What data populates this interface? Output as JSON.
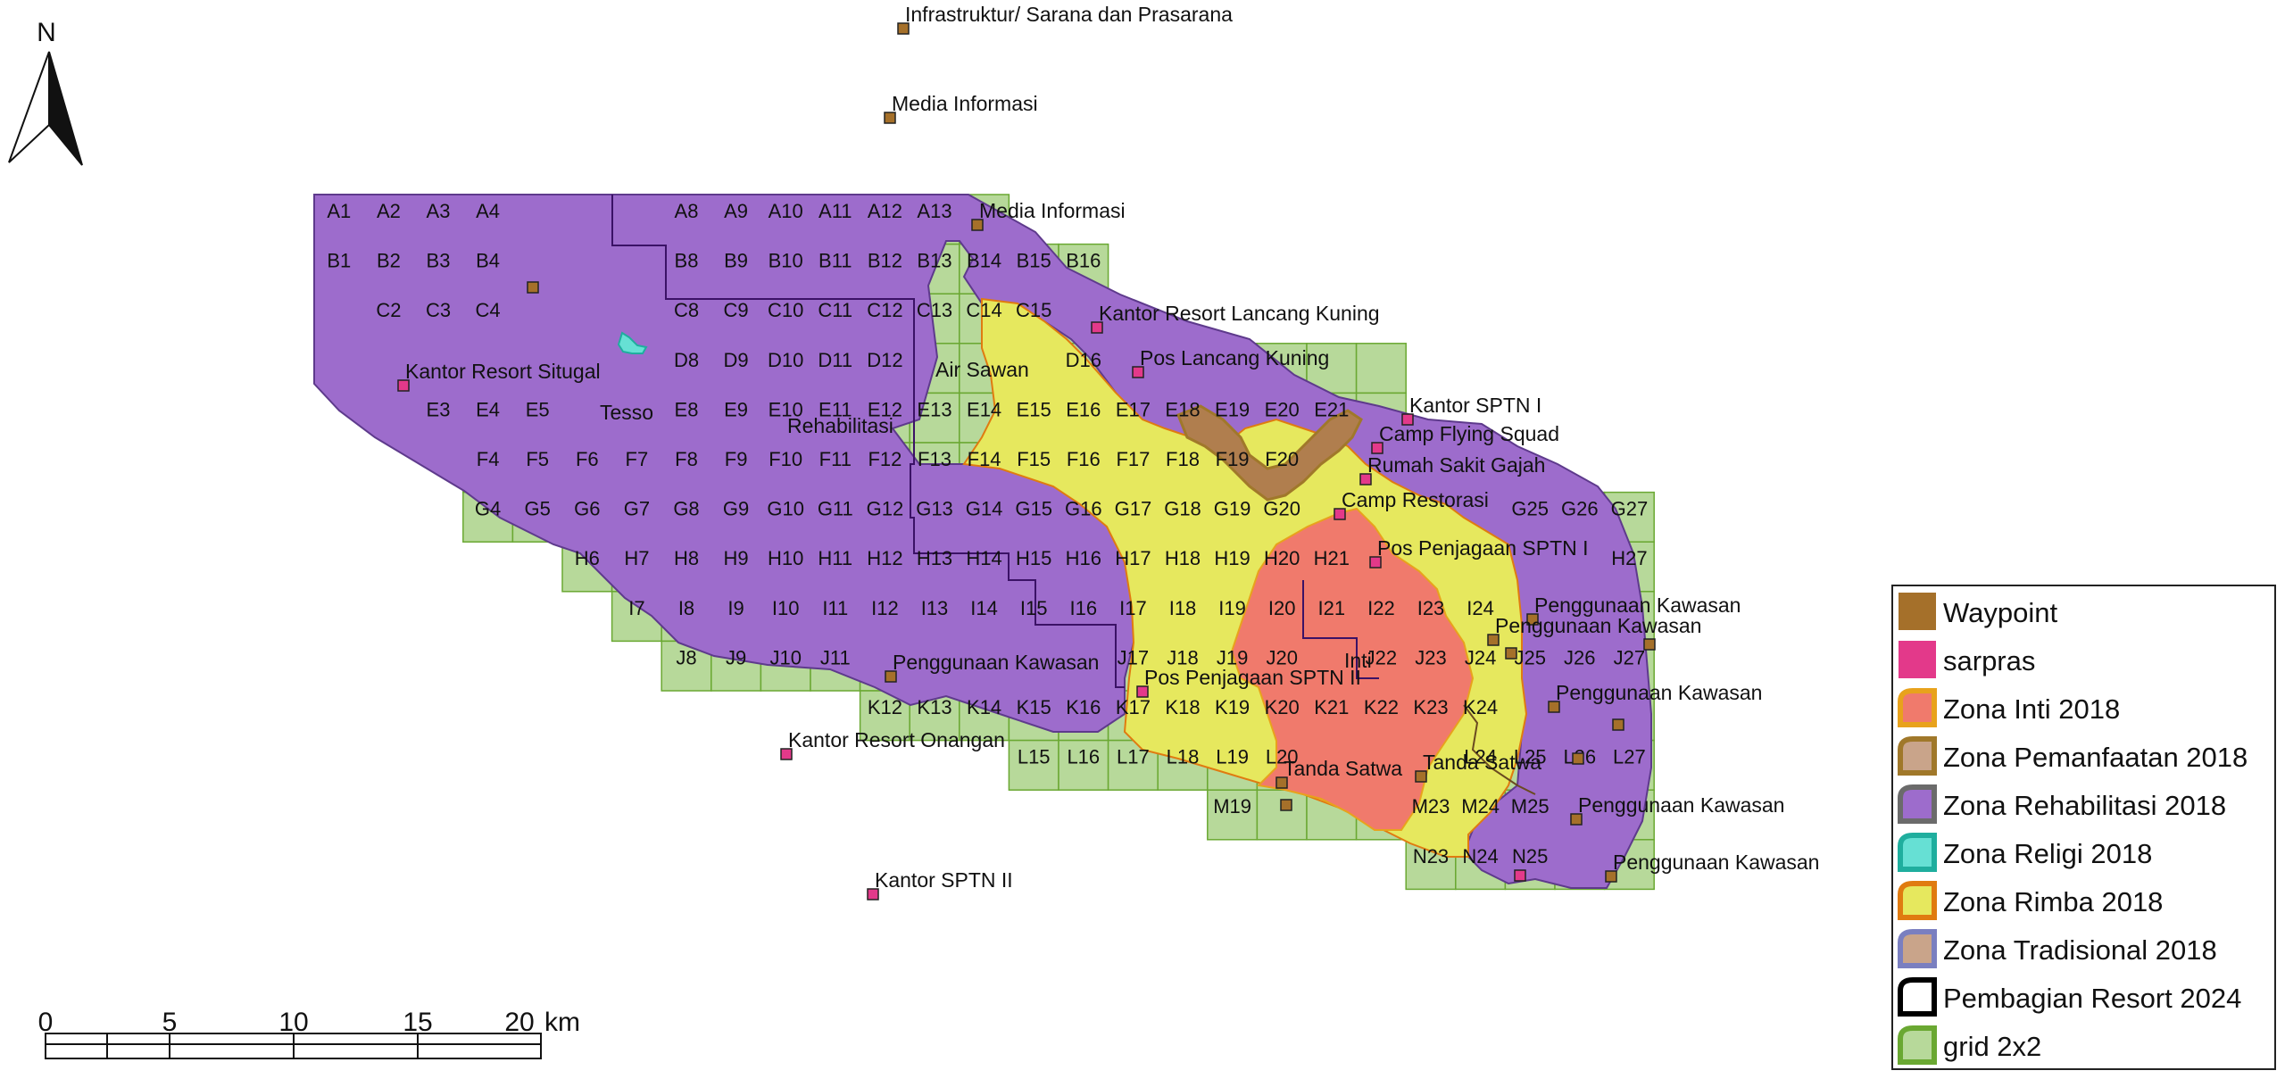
{
  "north": {
    "label": "N"
  },
  "scalebar": {
    "ticks": [
      "0",
      "5",
      "10",
      "15",
      "20"
    ],
    "unit": "km"
  },
  "grid_cells": [
    {
      "id": "A1",
      "c": 0,
      "r": 0
    },
    {
      "id": "A2",
      "c": 1,
      "r": 0
    },
    {
      "id": "A3",
      "c": 2,
      "r": 0
    },
    {
      "id": "A4",
      "c": 3,
      "r": 0
    },
    {
      "id": "A8",
      "c": 7,
      "r": 0
    },
    {
      "id": "A9",
      "c": 8,
      "r": 0
    },
    {
      "id": "A10",
      "c": 9,
      "r": 0
    },
    {
      "id": "A11",
      "c": 10,
      "r": 0
    },
    {
      "id": "A12",
      "c": 11,
      "r": 0
    },
    {
      "id": "A13",
      "c": 12,
      "r": 0
    },
    {
      "id": "B1",
      "c": 0,
      "r": 1
    },
    {
      "id": "B2",
      "c": 1,
      "r": 1
    },
    {
      "id": "B3",
      "c": 2,
      "r": 1
    },
    {
      "id": "B4",
      "c": 3,
      "r": 1
    },
    {
      "id": "B8",
      "c": 7,
      "r": 1
    },
    {
      "id": "B9",
      "c": 8,
      "r": 1
    },
    {
      "id": "B10",
      "c": 9,
      "r": 1
    },
    {
      "id": "B11",
      "c": 10,
      "r": 1
    },
    {
      "id": "B12",
      "c": 11,
      "r": 1
    },
    {
      "id": "B13",
      "c": 12,
      "r": 1
    },
    {
      "id": "B14",
      "c": 13,
      "r": 1
    },
    {
      "id": "B15",
      "c": 14,
      "r": 1
    },
    {
      "id": "B16",
      "c": 15,
      "r": 1
    },
    {
      "id": "C2",
      "c": 1,
      "r": 2
    },
    {
      "id": "C3",
      "c": 2,
      "r": 2
    },
    {
      "id": "C4",
      "c": 3,
      "r": 2
    },
    {
      "id": "C8",
      "c": 7,
      "r": 2
    },
    {
      "id": "C9",
      "c": 8,
      "r": 2
    },
    {
      "id": "C10",
      "c": 9,
      "r": 2
    },
    {
      "id": "C11",
      "c": 10,
      "r": 2
    },
    {
      "id": "C12",
      "c": 11,
      "r": 2
    },
    {
      "id": "C13",
      "c": 12,
      "r": 2
    },
    {
      "id": "C14",
      "c": 13,
      "r": 2
    },
    {
      "id": "C15",
      "c": 14,
      "r": 2
    },
    {
      "id": "D8",
      "c": 7,
      "r": 3
    },
    {
      "id": "D9",
      "c": 8,
      "r": 3
    },
    {
      "id": "D10",
      "c": 9,
      "r": 3
    },
    {
      "id": "D11",
      "c": 10,
      "r": 3
    },
    {
      "id": "D12",
      "c": 11,
      "r": 3
    },
    {
      "id": "D16",
      "c": 15,
      "r": 3
    },
    {
      "id": "E3",
      "c": 2,
      "r": 4
    },
    {
      "id": "E4",
      "c": 3,
      "r": 4
    },
    {
      "id": "E5",
      "c": 4,
      "r": 4
    },
    {
      "id": "E8",
      "c": 7,
      "r": 4
    },
    {
      "id": "E9",
      "c": 8,
      "r": 4
    },
    {
      "id": "E10",
      "c": 9,
      "r": 4
    },
    {
      "id": "E11",
      "c": 10,
      "r": 4
    },
    {
      "id": "E12",
      "c": 11,
      "r": 4
    },
    {
      "id": "E13",
      "c": 12,
      "r": 4
    },
    {
      "id": "E14",
      "c": 13,
      "r": 4
    },
    {
      "id": "E15",
      "c": 14,
      "r": 4
    },
    {
      "id": "E16",
      "c": 15,
      "r": 4
    },
    {
      "id": "E17",
      "c": 16,
      "r": 4
    },
    {
      "id": "E18",
      "c": 17,
      "r": 4
    },
    {
      "id": "E19",
      "c": 18,
      "r": 4
    },
    {
      "id": "E20",
      "c": 19,
      "r": 4
    },
    {
      "id": "E21",
      "c": 20,
      "r": 4
    },
    {
      "id": "F4",
      "c": 3,
      "r": 5
    },
    {
      "id": "F5",
      "c": 4,
      "r": 5
    },
    {
      "id": "F6",
      "c": 5,
      "r": 5
    },
    {
      "id": "F7",
      "c": 6,
      "r": 5
    },
    {
      "id": "F8",
      "c": 7,
      "r": 5
    },
    {
      "id": "F9",
      "c": 8,
      "r": 5
    },
    {
      "id": "F10",
      "c": 9,
      "r": 5
    },
    {
      "id": "F11",
      "c": 10,
      "r": 5
    },
    {
      "id": "F12",
      "c": 11,
      "r": 5
    },
    {
      "id": "F13",
      "c": 12,
      "r": 5
    },
    {
      "id": "F14",
      "c": 13,
      "r": 5
    },
    {
      "id": "F15",
      "c": 14,
      "r": 5
    },
    {
      "id": "F16",
      "c": 15,
      "r": 5
    },
    {
      "id": "F17",
      "c": 16,
      "r": 5
    },
    {
      "id": "F18",
      "c": 17,
      "r": 5
    },
    {
      "id": "F19",
      "c": 18,
      "r": 5
    },
    {
      "id": "F20",
      "c": 19,
      "r": 5
    },
    {
      "id": "G4",
      "c": 3,
      "r": 6
    },
    {
      "id": "G5",
      "c": 4,
      "r": 6
    },
    {
      "id": "G6",
      "c": 5,
      "r": 6
    },
    {
      "id": "G7",
      "c": 6,
      "r": 6
    },
    {
      "id": "G8",
      "c": 7,
      "r": 6
    },
    {
      "id": "G9",
      "c": 8,
      "r": 6
    },
    {
      "id": "G10",
      "c": 9,
      "r": 6
    },
    {
      "id": "G11",
      "c": 10,
      "r": 6
    },
    {
      "id": "G12",
      "c": 11,
      "r": 6
    },
    {
      "id": "G13",
      "c": 12,
      "r": 6
    },
    {
      "id": "G14",
      "c": 13,
      "r": 6
    },
    {
      "id": "G15",
      "c": 14,
      "r": 6
    },
    {
      "id": "G16",
      "c": 15,
      "r": 6
    },
    {
      "id": "G17",
      "c": 16,
      "r": 6
    },
    {
      "id": "G18",
      "c": 17,
      "r": 6
    },
    {
      "id": "G19",
      "c": 18,
      "r": 6
    },
    {
      "id": "G20",
      "c": 19,
      "r": 6
    },
    {
      "id": "G25",
      "c": 24,
      "r": 6
    },
    {
      "id": "G26",
      "c": 25,
      "r": 6
    },
    {
      "id": "G27",
      "c": 26,
      "r": 6
    },
    {
      "id": "H6",
      "c": 5,
      "r": 7
    },
    {
      "id": "H7",
      "c": 6,
      "r": 7
    },
    {
      "id": "H8",
      "c": 7,
      "r": 7
    },
    {
      "id": "H9",
      "c": 8,
      "r": 7
    },
    {
      "id": "H10",
      "c": 9,
      "r": 7
    },
    {
      "id": "H11",
      "c": 10,
      "r": 7
    },
    {
      "id": "H12",
      "c": 11,
      "r": 7
    },
    {
      "id": "H13",
      "c": 12,
      "r": 7
    },
    {
      "id": "H14",
      "c": 13,
      "r": 7
    },
    {
      "id": "H15",
      "c": 14,
      "r": 7
    },
    {
      "id": "H16",
      "c": 15,
      "r": 7
    },
    {
      "id": "H17",
      "c": 16,
      "r": 7
    },
    {
      "id": "H18",
      "c": 17,
      "r": 7
    },
    {
      "id": "H19",
      "c": 18,
      "r": 7
    },
    {
      "id": "H20",
      "c": 19,
      "r": 7
    },
    {
      "id": "H21",
      "c": 20,
      "r": 7
    },
    {
      "id": "H27",
      "c": 26,
      "r": 7
    },
    {
      "id": "I7",
      "c": 6,
      "r": 8
    },
    {
      "id": "I8",
      "c": 7,
      "r": 8
    },
    {
      "id": "I9",
      "c": 8,
      "r": 8
    },
    {
      "id": "I10",
      "c": 9,
      "r": 8
    },
    {
      "id": "I11",
      "c": 10,
      "r": 8
    },
    {
      "id": "I12",
      "c": 11,
      "r": 8
    },
    {
      "id": "I13",
      "c": 12,
      "r": 8
    },
    {
      "id": "I14",
      "c": 13,
      "r": 8
    },
    {
      "id": "I15",
      "c": 14,
      "r": 8
    },
    {
      "id": "I16",
      "c": 15,
      "r": 8
    },
    {
      "id": "I17",
      "c": 16,
      "r": 8
    },
    {
      "id": "I18",
      "c": 17,
      "r": 8
    },
    {
      "id": "I19",
      "c": 18,
      "r": 8
    },
    {
      "id": "I20",
      "c": 19,
      "r": 8
    },
    {
      "id": "I21",
      "c": 20,
      "r": 8
    },
    {
      "id": "I22",
      "c": 21,
      "r": 8
    },
    {
      "id": "I23",
      "c": 22,
      "r": 8
    },
    {
      "id": "I24",
      "c": 23,
      "r": 8
    },
    {
      "id": "J8",
      "c": 7,
      "r": 9
    },
    {
      "id": "J9",
      "c": 8,
      "r": 9
    },
    {
      "id": "J10",
      "c": 9,
      "r": 9
    },
    {
      "id": "J11",
      "c": 10,
      "r": 9
    },
    {
      "id": "J17",
      "c": 16,
      "r": 9
    },
    {
      "id": "J18",
      "c": 17,
      "r": 9
    },
    {
      "id": "J19",
      "c": 18,
      "r": 9
    },
    {
      "id": "J20",
      "c": 19,
      "r": 9
    },
    {
      "id": "J22",
      "c": 21,
      "r": 9
    },
    {
      "id": "J23",
      "c": 22,
      "r": 9
    },
    {
      "id": "J24",
      "c": 23,
      "r": 9
    },
    {
      "id": "J25",
      "c": 24,
      "r": 9
    },
    {
      "id": "J26",
      "c": 25,
      "r": 9
    },
    {
      "id": "J27",
      "c": 26,
      "r": 9
    },
    {
      "id": "K12",
      "c": 11,
      "r": 10
    },
    {
      "id": "K13",
      "c": 12,
      "r": 10
    },
    {
      "id": "K14",
      "c": 13,
      "r": 10
    },
    {
      "id": "K15",
      "c": 14,
      "r": 10
    },
    {
      "id": "K16",
      "c": 15,
      "r": 10
    },
    {
      "id": "K17",
      "c": 16,
      "r": 10
    },
    {
      "id": "K18",
      "c": 17,
      "r": 10
    },
    {
      "id": "K19",
      "c": 18,
      "r": 10
    },
    {
      "id": "K20",
      "c": 19,
      "r": 10
    },
    {
      "id": "K21",
      "c": 20,
      "r": 10
    },
    {
      "id": "K22",
      "c": 21,
      "r": 10
    },
    {
      "id": "K23",
      "c": 22,
      "r": 10
    },
    {
      "id": "K24",
      "c": 23,
      "r": 10
    },
    {
      "id": "L15",
      "c": 14,
      "r": 11
    },
    {
      "id": "L16",
      "c": 15,
      "r": 11
    },
    {
      "id": "L17",
      "c": 16,
      "r": 11
    },
    {
      "id": "L18",
      "c": 17,
      "r": 11
    },
    {
      "id": "L19",
      "c": 18,
      "r": 11
    },
    {
      "id": "L20",
      "c": 19,
      "r": 11
    },
    {
      "id": "L24",
      "c": 23,
      "r": 11
    },
    {
      "id": "L25",
      "c": 24,
      "r": 11
    },
    {
      "id": "L26",
      "c": 25,
      "r": 11
    },
    {
      "id": "L27",
      "c": 26,
      "r": 11
    },
    {
      "id": "M19",
      "c": 18,
      "r": 12
    },
    {
      "id": "M23",
      "c": 22,
      "r": 12
    },
    {
      "id": "M24",
      "c": 23,
      "r": 12
    },
    {
      "id": "M25",
      "c": 24,
      "r": 12
    },
    {
      "id": "N23",
      "c": 22,
      "r": 13
    },
    {
      "id": "N24",
      "c": 23,
      "r": 13
    },
    {
      "id": "N25",
      "c": 24,
      "r": 13
    }
  ],
  "place_labels": [
    {
      "name": "Tesso",
      "text": "Tesso"
    },
    {
      "name": "Rehabilitasi",
      "text": "Rehabilitasi"
    },
    {
      "name": "Air Sawan",
      "text": "Air Sawan"
    },
    {
      "name": "Inti",
      "text": "Inti"
    }
  ],
  "points": [
    {
      "type": "waypoint",
      "label": "Infrastruktur/ Sarana dan Prasarana"
    },
    {
      "type": "waypoint",
      "label": "Media Informasi"
    },
    {
      "type": "waypoint",
      "label": "Media Informasi"
    },
    {
      "type": "waypoint",
      "label": ""
    },
    {
      "type": "sarpras",
      "label": "Kantor Resort Lancang Kuning"
    },
    {
      "type": "sarpras",
      "label": "Pos Lancang Kuning"
    },
    {
      "type": "sarpras",
      "label": "Kantor Resort Situgal"
    },
    {
      "type": "sarpras",
      "label": "Kantor SPTN I"
    },
    {
      "type": "sarpras",
      "label": "Camp Flying Squad"
    },
    {
      "type": "sarpras",
      "label": "Rumah Sakit Gajah"
    },
    {
      "type": "sarpras",
      "label": "Camp Restorasi"
    },
    {
      "type": "sarpras",
      "label": "Pos Penjagaan SPTN I"
    },
    {
      "type": "waypoint",
      "label": "Penggunaan Kawasan"
    },
    {
      "type": "waypoint",
      "label": "Penggunaan Kawasan"
    },
    {
      "type": "waypoint",
      "label": ""
    },
    {
      "type": "waypoint",
      "label": ""
    },
    {
      "type": "waypoint",
      "label": "Penggunaan Kawasan"
    },
    {
      "type": "sarpras",
      "label": "Pos Penjagaan SPTN II"
    },
    {
      "type": "waypoint",
      "label": "Penggunaan Kawasan"
    },
    {
      "type": "waypoint",
      "label": ""
    },
    {
      "type": "sarpras",
      "label": "Kantor Resort Onangan"
    },
    {
      "type": "waypoint",
      "label": "Tanda Satwa"
    },
    {
      "type": "waypoint",
      "label": "Tanda Satwa"
    },
    {
      "type": "waypoint",
      "label": ""
    },
    {
      "type": "waypoint",
      "label": "Penggunaan Kawasan"
    },
    {
      "type": "waypoint",
      "label": ""
    },
    {
      "type": "sarpras",
      "label": "Kantor SPTN II"
    },
    {
      "type": "sarpras",
      "label": ""
    },
    {
      "type": "waypoint",
      "label": "Penggunaan Kawasan"
    }
  ],
  "legend": [
    {
      "label": "Waypoint",
      "fill": "#a5702a",
      "outline": "none",
      "icon": "waypoint-swatch"
    },
    {
      "label": "sarpras",
      "fill": "#e3398a",
      "outline": "none",
      "icon": "sarpras-swatch"
    },
    {
      "label": "Zona Inti 2018",
      "fill": "#f07a6c",
      "outline": "#e8a21c",
      "icon": "zona-inti-swatch"
    },
    {
      "label": "Zona Pemanfaatan 2018",
      "fill": "#b07e4e",
      "outline": "#a0782a",
      "icon": "zona-pemanfaatan-swatch"
    },
    {
      "label": "Zona Rehabilitasi 2018",
      "fill": "#9d6ccc",
      "outline": "#6b6b6b",
      "icon": "zona-rehabilitasi-swatch"
    },
    {
      "label": "Zona Religi 2018",
      "fill": "#66e0d4",
      "outline": "#1fae9e",
      "icon": "zona-religi-swatch"
    },
    {
      "label": "Zona Rimba 2018",
      "fill": "#e6e85e",
      "outline": "#e07b10",
      "icon": "zona-rimba-swatch"
    },
    {
      "label": "Zona Tradisional 2018",
      "fill": "#c9a48a",
      "outline": "#7a7fc0",
      "icon": "zona-tradisional-swatch"
    },
    {
      "label": "Pembagian Resort 2024",
      "fill": "#ffffff",
      "outline": "#000000",
      "icon": "pembagian-resort-swatch"
    },
    {
      "label": "grid 2x2",
      "fill": "#b7d99a",
      "outline": "#6aa832",
      "icon": "grid-swatch"
    }
  ],
  "colors": {
    "grid": "#b7d99a",
    "grid_line": "#6aa832",
    "rehabilitasi": "#9d6ccc",
    "rimba": "#e6e85e",
    "inti": "#f07a6c",
    "pemanfaatan": "#b07e4e",
    "religi": "#66e0d4",
    "waypoint": "#a5702a",
    "sarpras": "#e3398a"
  }
}
